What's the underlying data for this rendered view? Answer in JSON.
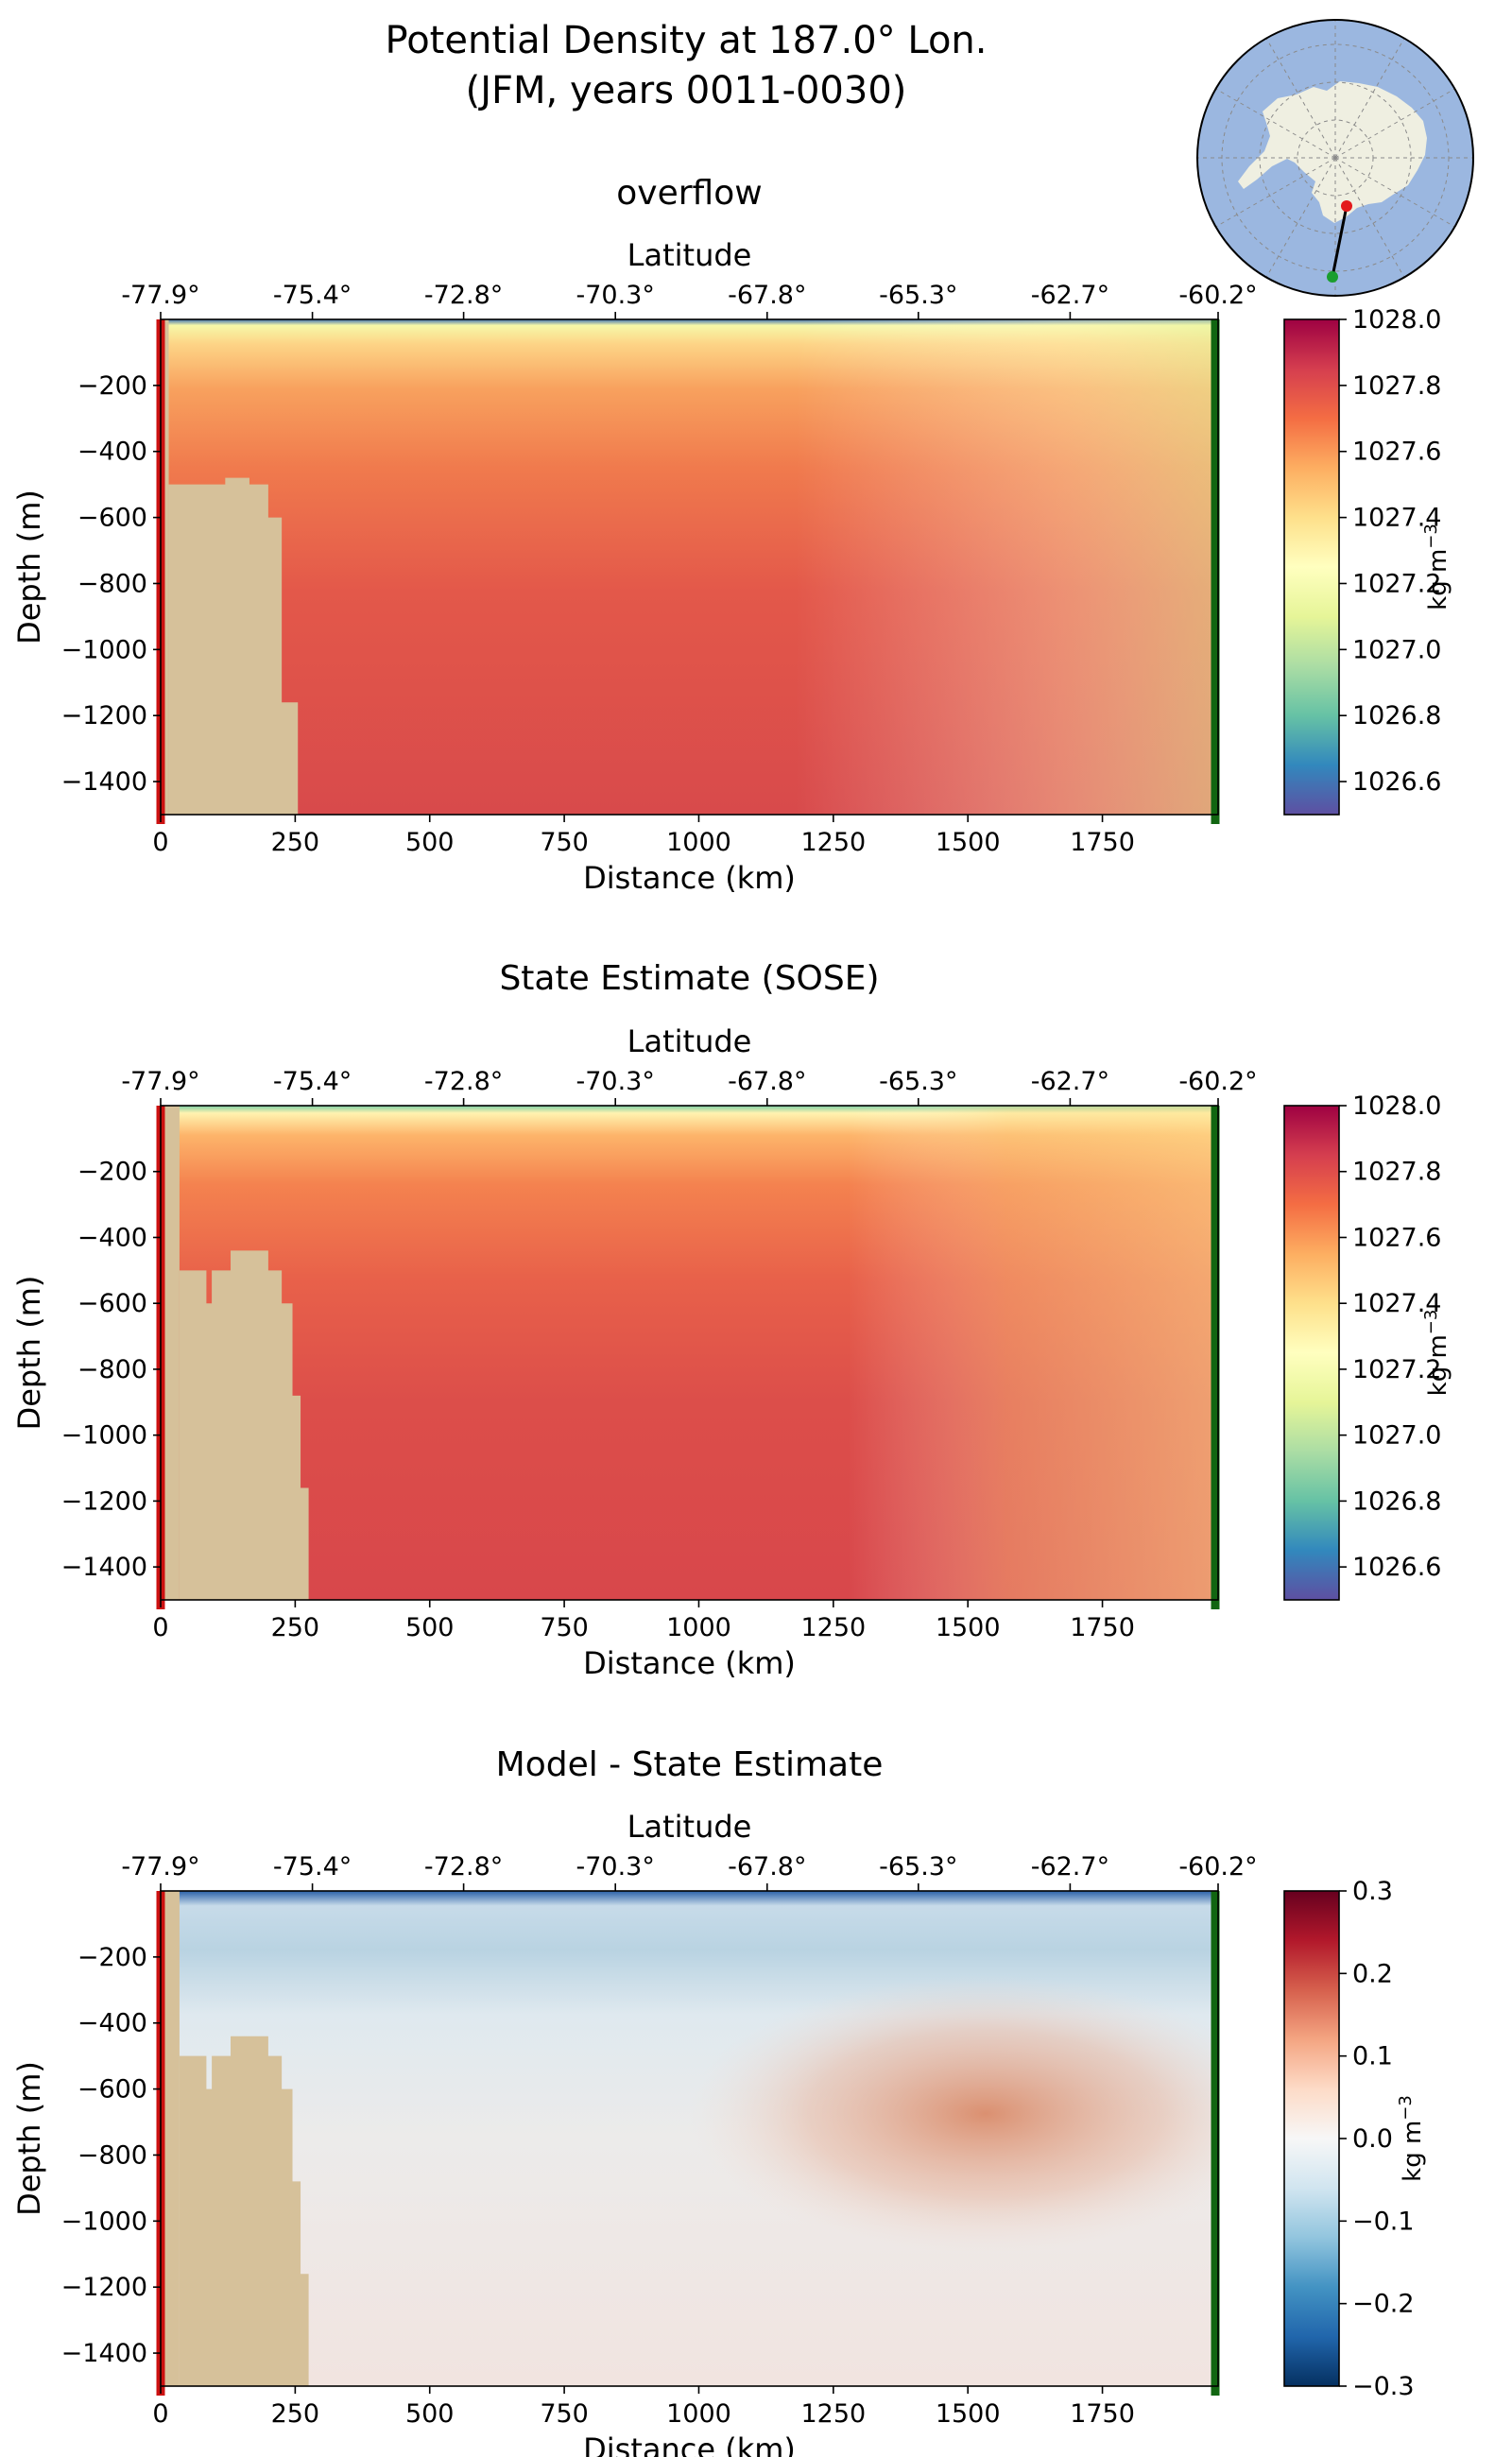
{
  "figure": {
    "title_line1": "Potential Density at 187.0° Lon.",
    "title_line2": "(JFM, years 0011-0030)"
  },
  "inset_map": {
    "projection": "south-polar stereographic",
    "colors": {
      "ocean": "#9bb7e0",
      "land": "#efefe1",
      "section_line": "#000000",
      "start_marker": "#e31a1c",
      "end_marker": "#1a9e2e"
    }
  },
  "colors": {
    "bathymetry": "#d6c19a",
    "start_line": "#cc1111",
    "end_line": "#116611"
  },
  "chart_data": [
    {
      "type": "heatmap",
      "title": "overflow",
      "xlabel": "Distance (km)",
      "ylabel": "Depth (m)",
      "top_axis_label": "Latitude",
      "x_ticks": [
        0,
        250,
        500,
        750,
        1000,
        1250,
        1500,
        1750
      ],
      "x_tick_labels": [
        "0",
        "250",
        "500",
        "750",
        "1000",
        "1250",
        "1500",
        "1750"
      ],
      "y_ticks": [
        -200,
        -400,
        -600,
        -800,
        -1000,
        -1200,
        -1400
      ],
      "y_tick_labels": [
        "−200",
        "−400",
        "−600",
        "−800",
        "−1000",
        "−1200",
        "−1400"
      ],
      "lat_ticks_km": [
        0,
        282,
        563,
        845,
        1127,
        1408,
        1690,
        1972
      ],
      "lat_tick_labels": [
        "-77.9°",
        "-75.4°",
        "-72.8°",
        "-70.3°",
        "-67.8°",
        "-65.3°",
        "-62.7°",
        "-60.2°"
      ],
      "xlim": [
        0,
        1965
      ],
      "ylim": [
        -1500,
        0
      ],
      "colorbar": {
        "label": "kg m",
        "label_exponent": "−3",
        "colormap": "Spectral_r",
        "vmin": 1026.5,
        "vmax": 1028.0,
        "ticks": [
          1026.6,
          1026.8,
          1027.0,
          1027.2,
          1027.4,
          1027.6,
          1027.8,
          1028.0
        ],
        "tick_labels": [
          "1026.6",
          "1026.8",
          "1027.0",
          "1027.2",
          "1027.4",
          "1027.6",
          "1027.8",
          "1028.0"
        ]
      },
      "bathymetry_steps": [
        [
          0,
          1500
        ],
        [
          15,
          -500
        ],
        [
          50,
          -500
        ],
        [
          120,
          -480
        ],
        [
          165,
          -500
        ],
        [
          200,
          -600
        ],
        [
          225,
          -1160
        ],
        [
          255,
          -1500
        ]
      ]
    },
    {
      "type": "heatmap",
      "title": "State Estimate (SOSE)",
      "xlabel": "Distance (km)",
      "ylabel": "Depth (m)",
      "top_axis_label": "Latitude",
      "x_ticks": [
        0,
        250,
        500,
        750,
        1000,
        1250,
        1500,
        1750
      ],
      "x_tick_labels": [
        "0",
        "250",
        "500",
        "750",
        "1000",
        "1250",
        "1500",
        "1750"
      ],
      "y_ticks": [
        -200,
        -400,
        -600,
        -800,
        -1000,
        -1200,
        -1400
      ],
      "y_tick_labels": [
        "−200",
        "−400",
        "−600",
        "−800",
        "−1000",
        "−1200",
        "−1400"
      ],
      "lat_ticks_km": [
        0,
        282,
        563,
        845,
        1127,
        1408,
        1690,
        1972
      ],
      "lat_tick_labels": [
        "-77.9°",
        "-75.4°",
        "-72.8°",
        "-70.3°",
        "-67.8°",
        "-65.3°",
        "-62.7°",
        "-60.2°"
      ],
      "xlim": [
        0,
        1965
      ],
      "ylim": [
        -1500,
        0
      ],
      "colorbar": {
        "label": "kg m",
        "label_exponent": "−3",
        "colormap": "Spectral_r",
        "vmin": 1026.5,
        "vmax": 1028.0,
        "ticks": [
          1026.6,
          1026.8,
          1027.0,
          1027.2,
          1027.4,
          1027.6,
          1027.8,
          1028.0
        ],
        "tick_labels": [
          "1026.6",
          "1026.8",
          "1027.0",
          "1027.2",
          "1027.4",
          "1027.6",
          "1027.8",
          "1028.0"
        ]
      },
      "bathymetry_steps": [
        [
          0,
          1500
        ],
        [
          35,
          -500
        ],
        [
          55,
          -500
        ],
        [
          85,
          -600
        ],
        [
          95,
          -500
        ],
        [
          130,
          -440
        ],
        [
          200,
          -500
        ],
        [
          225,
          -600
        ],
        [
          245,
          -880
        ],
        [
          260,
          -1160
        ],
        [
          275,
          -1500
        ]
      ]
    },
    {
      "type": "heatmap",
      "title": "Model - State Estimate",
      "xlabel": "Distance (km)",
      "ylabel": "Depth (m)",
      "top_axis_label": "Latitude",
      "x_ticks": [
        0,
        250,
        500,
        750,
        1000,
        1250,
        1500,
        1750
      ],
      "x_tick_labels": [
        "0",
        "250",
        "500",
        "750",
        "1000",
        "1250",
        "1500",
        "1750"
      ],
      "y_ticks": [
        -200,
        -400,
        -600,
        -800,
        -1000,
        -1200,
        -1400
      ],
      "y_tick_labels": [
        "−200",
        "−400",
        "−600",
        "−800",
        "−1000",
        "−1200",
        "−1400"
      ],
      "lat_ticks_km": [
        0,
        282,
        563,
        845,
        1127,
        1408,
        1690,
        1972
      ],
      "lat_tick_labels": [
        "-77.9°",
        "-75.4°",
        "-72.8°",
        "-70.3°",
        "-67.8°",
        "-65.3°",
        "-62.7°",
        "-60.2°"
      ],
      "xlim": [
        0,
        1965
      ],
      "ylim": [
        -1500,
        0
      ],
      "colorbar": {
        "label": "kg m",
        "label_exponent": "−3",
        "colormap": "RdBu_r",
        "vmin": -0.3,
        "vmax": 0.3,
        "ticks": [
          -0.3,
          -0.2,
          -0.1,
          0.0,
          0.1,
          0.2,
          0.3
        ],
        "tick_labels": [
          "−0.3",
          "−0.2",
          "−0.1",
          "0.0",
          "0.1",
          "0.2",
          "0.3"
        ]
      },
      "bathymetry_steps": [
        [
          0,
          1500
        ],
        [
          35,
          -500
        ],
        [
          55,
          -500
        ],
        [
          85,
          -600
        ],
        [
          95,
          -500
        ],
        [
          130,
          -440
        ],
        [
          200,
          -500
        ],
        [
          225,
          -600
        ],
        [
          245,
          -880
        ],
        [
          260,
          -1160
        ],
        [
          275,
          -1500
        ]
      ]
    }
  ]
}
